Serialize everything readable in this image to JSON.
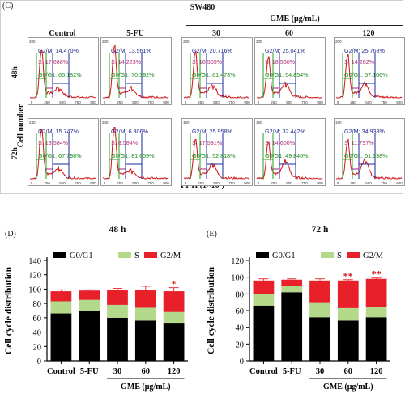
{
  "panel_c": {
    "label": "(C)",
    "cell_line": "SW480",
    "group_label": "GME (μg/mL)",
    "y_label": "Cell number",
    "x_label": "PI-H (1×10³)",
    "columns": [
      "Control",
      "5-FU",
      "30",
      "60",
      "120"
    ],
    "rows": [
      "48h",
      "72h"
    ],
    "cells": [
      [
        {
          "g2m": "G2/M: 14.470%",
          "s": "S: 17.688%",
          "g0g1": "G0/G1: 65.182%",
          "ymax": "200"
        },
        {
          "g2m": "G2/M: 13.561%",
          "s": "S: 14.223%",
          "g0g1": "G0/G1: 70.392%",
          "ymax": "200"
        },
        {
          "g2m": "G2/M: 20.716%",
          "s": "S: 16.505%",
          "g0g1": "G0/G1: 61.473%",
          "ymax": "200"
        },
        {
          "g2m": "G2/M: 25.041%",
          "s": "S: 18.560%",
          "g0g1": "G0/G1: 54.854%",
          "ymax": "200"
        },
        {
          "g2m": "G2/M: 25.768%",
          "s": "S: 14.282%",
          "g0g1": "G0/G1: 57.106%",
          "ymax": "200"
        }
      ],
      [
        {
          "g2m": "G2/M: 15.747%",
          "s": "S: 13.584%",
          "g0g1": "G0/G1: 67.798%",
          "ymax": "240"
        },
        {
          "g2m": "G2/M: 6.806%",
          "s": "S: 8.584%",
          "g0g1": "G0/G1: 81.659%",
          "ymax": "240"
        },
        {
          "g2m": "G2/M: 25.958%",
          "s": "S: 17.591%",
          "g0g1": "G0/G1: 52.818%",
          "ymax": "160"
        },
        {
          "g2m": "G2/M: 32.442%",
          "s": "S: 14.600%",
          "g0g1": "G0/G1: 49.846%",
          "ymax": "160"
        },
        {
          "g2m": "G2/M: 34.933%",
          "s": "S: 11.797%",
          "g0g1": "G0/G1: 51.338%",
          "ymax": "160"
        }
      ]
    ],
    "x_ticks": [
      "0",
      "250",
      "500",
      "750",
      "900"
    ],
    "colors": {
      "g2m": "#1f2a8a",
      "s": "#b0307a",
      "g0g1": "#1a8a1a",
      "gate_g0g1": "#22a022",
      "gate_s": "#a02080",
      "gate_g2m": "#1a2aa0",
      "hist": "#d21414"
    }
  },
  "panel_d": {
    "label": "(D)",
    "title": "48 h",
    "y_label": "Cell cycle distribution",
    "x_group_label": "GME (μg/mL)",
    "categories": [
      "Control",
      "5-FU",
      "30",
      "60",
      "120"
    ],
    "annotations": [
      "",
      "",
      "",
      "",
      "*"
    ]
  },
  "panel_e": {
    "label": "(E)",
    "title": "72 h",
    "y_label": "Cell cycle distribution",
    "x_group_label": "GME (μg/mL)",
    "categories": [
      "Control",
      "5-FU",
      "30",
      "60",
      "120"
    ],
    "annotations": [
      "",
      "",
      "",
      "**",
      "**"
    ]
  },
  "legend": [
    "G0/G1",
    "S",
    "G2/M"
  ],
  "colors": {
    "g0g1": "#000000",
    "s": "#b5d98a",
    "g2m": "#e8202a"
  },
  "chart_data": [
    {
      "type": "bar",
      "stacked": true,
      "title": "48 h",
      "ylabel": "Cell cycle distribution",
      "xlabel": "GME (μg/mL)",
      "categories": [
        "Control",
        "5-FU",
        "30",
        "60",
        "120"
      ],
      "ylim": [
        0,
        140
      ],
      "yticks": [
        0,
        20,
        40,
        60,
        80,
        100,
        120,
        140
      ],
      "series": [
        {
          "name": "G0/G1",
          "values": [
            66,
            70,
            60,
            56,
            53
          ],
          "errors": [
            2,
            1,
            2,
            6,
            8
          ]
        },
        {
          "name": "S",
          "values": [
            17,
            15,
            18,
            18,
            15
          ],
          "errors": [
            1,
            1,
            1,
            2,
            2
          ]
        },
        {
          "name": "G2/M",
          "values": [
            14,
            13,
            21,
            25,
            29
          ],
          "errors": [
            2,
            1,
            2,
            5,
            5
          ]
        }
      ]
    },
    {
      "type": "bar",
      "stacked": true,
      "title": "72 h",
      "ylabel": "Cell cycle distribution",
      "xlabel": "GME (μg/mL)",
      "categories": [
        "Control",
        "5-FU",
        "30",
        "60",
        "120"
      ],
      "ylim": [
        0,
        120
      ],
      "yticks": [
        0,
        20,
        40,
        60,
        80,
        100,
        120
      ],
      "series": [
        {
          "name": "G0/G1",
          "values": [
            66,
            82,
            52,
            48,
            52
          ],
          "errors": [
            3,
            1,
            2,
            1,
            2
          ]
        },
        {
          "name": "S",
          "values": [
            14,
            8,
            18,
            15,
            12
          ],
          "errors": [
            2,
            1,
            1,
            1,
            1
          ]
        },
        {
          "name": "G2/M",
          "values": [
            16,
            7,
            26,
            33,
            34
          ],
          "errors": [
            2,
            1,
            2,
            1,
            1
          ]
        }
      ]
    }
  ]
}
